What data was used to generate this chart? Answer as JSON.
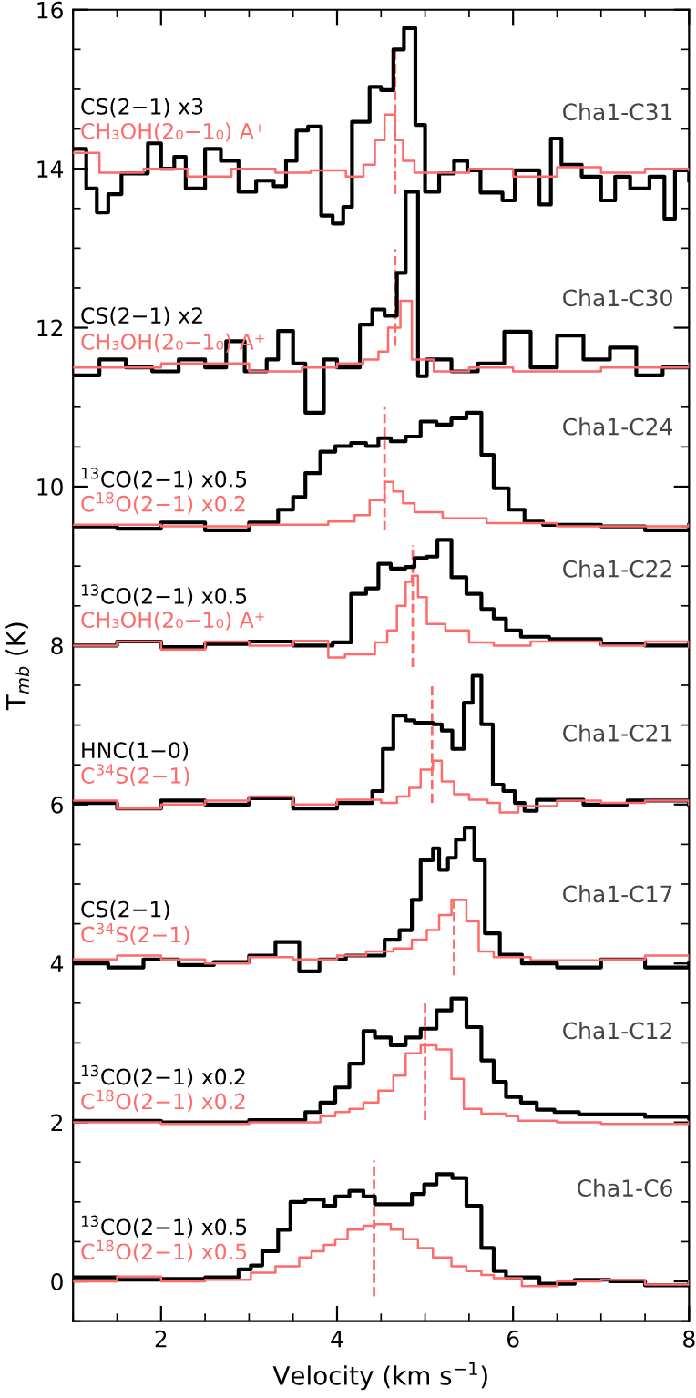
{
  "chart_data": {
    "type": "step",
    "xlabel": "Velocity (km s$^{−1}$)",
    "ylabel": "T$_{mb}$ (K)",
    "xlim": [
      1,
      8
    ],
    "ylim": [
      -0.5,
      16
    ],
    "xticks": [
      2,
      4,
      6,
      8
    ],
    "yticks": [
      0,
      2,
      4,
      6,
      8,
      10,
      12,
      14,
      16
    ],
    "grid": false,
    "legend": false,
    "series": [
      {
        "name": "CS(2−1) x3",
        "color": "#000000",
        "x": [
          1.0,
          1.15,
          1.27,
          1.4,
          1.55,
          1.85,
          2.0,
          2.15,
          2.28,
          2.5,
          2.68,
          2.88,
          3.08,
          3.28,
          3.42,
          3.54,
          3.67,
          3.82,
          3.95,
          4.07,
          4.17,
          4.37,
          4.5,
          4.64,
          4.76,
          4.89,
          5.0,
          5.16,
          5.33,
          5.48,
          5.63,
          5.88,
          6.02,
          6.3,
          6.43,
          6.55,
          6.78,
          7.0,
          7.16,
          7.33,
          7.55,
          7.72,
          7.84,
          8.0
        ],
        "values": [
          14.25,
          13.75,
          13.45,
          13.68,
          13.94,
          14.32,
          14.0,
          14.15,
          13.75,
          14.25,
          14.1,
          13.71,
          13.85,
          13.78,
          14.1,
          14.48,
          14.53,
          13.41,
          13.31,
          13.52,
          14.59,
          15.03,
          14.99,
          15.5,
          15.77,
          14.55,
          13.71,
          13.94,
          14.1,
          13.98,
          13.7,
          13.6,
          13.98,
          13.55,
          14.38,
          14.05,
          13.9,
          13.6,
          13.9,
          13.75,
          13.9,
          13.37,
          13.98,
          13.85
        ]
      },
      {
        "name": "CH₃OH(2₀−1₀) A⁺",
        "color": "#ff6b6b",
        "x": [
          1.0,
          1.3,
          1.8,
          2.3,
          2.8,
          3.3,
          3.7,
          4.1,
          4.3,
          4.43,
          4.54,
          4.66,
          4.75,
          4.88,
          5.0,
          5.5,
          6.0,
          6.5,
          7.0,
          7.5,
          8.0
        ],
        "values": [
          14.2,
          13.95,
          14.0,
          13.9,
          14.0,
          13.95,
          13.98,
          13.9,
          14.05,
          14.36,
          14.68,
          14.36,
          14.1,
          13.95,
          13.95,
          14.0,
          13.9,
          14.02,
          13.95,
          14.0,
          13.98
        ]
      },
      {
        "type": "line",
        "line_style": "dashed",
        "color": "#ff6b6b",
        "x": [
          4.66,
          4.66
        ],
        "values": [
          13.68,
          15.5
        ]
      },
      {
        "name": "CS(2−1) x2",
        "color": "#000000",
        "x": [
          1.0,
          1.3,
          1.6,
          1.9,
          2.2,
          2.5,
          2.74,
          2.95,
          3.2,
          3.33,
          3.5,
          3.64,
          3.85,
          4.0,
          4.26,
          4.4,
          4.54,
          4.68,
          4.78,
          4.92,
          5.02,
          5.3,
          5.6,
          5.9,
          6.2,
          6.5,
          6.8,
          7.1,
          7.4,
          7.7,
          8.0
        ],
        "values": [
          11.4,
          11.6,
          11.5,
          11.45,
          11.6,
          11.5,
          11.83,
          11.45,
          11.6,
          11.96,
          11.55,
          10.93,
          11.6,
          11.5,
          12.04,
          12.23,
          12.15,
          12.69,
          13.71,
          11.39,
          11.6,
          11.45,
          11.55,
          11.95,
          11.5,
          11.9,
          11.6,
          11.75,
          11.4,
          11.5,
          11.5
        ]
      },
      {
        "name": "CH₃OH(2₀−1₀) A⁺",
        "color": "#ff6b6b",
        "x": [
          1.0,
          2.0,
          3.0,
          3.6,
          4.0,
          4.3,
          4.47,
          4.58,
          4.72,
          4.85,
          5.1,
          5.5,
          6.0,
          7.0,
          8.0
        ],
        "values": [
          11.5,
          11.55,
          11.45,
          11.5,
          11.55,
          11.6,
          11.7,
          12.0,
          12.34,
          11.6,
          11.45,
          11.5,
          11.45,
          11.5,
          11.55
        ]
      },
      {
        "type": "line",
        "line_style": "dashed",
        "color": "#ff6b6b",
        "x": [
          4.66,
          4.66
        ],
        "values": [
          11.77,
          12.99
        ]
      },
      {
        "name": "$^{13}$CO(2−1) x0.5",
        "color": "#000000",
        "x": [
          1.0,
          1.5,
          2.0,
          2.5,
          3.0,
          3.33,
          3.5,
          3.64,
          3.81,
          3.98,
          4.16,
          4.33,
          4.47,
          4.61,
          4.78,
          4.95,
          5.13,
          5.3,
          5.47,
          5.64,
          5.78,
          5.95,
          6.13,
          6.34,
          7.0,
          7.5,
          8.0
        ],
        "values": [
          9.5,
          9.47,
          9.55,
          9.45,
          9.55,
          9.71,
          9.87,
          10.17,
          10.44,
          10.51,
          10.55,
          10.51,
          10.61,
          10.57,
          10.63,
          10.82,
          10.78,
          10.86,
          10.93,
          10.4,
          9.98,
          9.71,
          9.56,
          9.52,
          9.5,
          9.45,
          9.52
        ]
      },
      {
        "name": "C$^{18}$O(2−1) x0.2",
        "color": "#ff6b6b",
        "x": [
          1.0,
          2.0,
          3.0,
          3.9,
          4.2,
          4.37,
          4.54,
          4.64,
          4.75,
          4.88,
          5.2,
          5.7,
          6.5,
          8.0
        ],
        "values": [
          9.52,
          9.5,
          9.52,
          9.56,
          9.64,
          9.83,
          10.06,
          9.94,
          9.79,
          9.68,
          9.6,
          9.54,
          9.5,
          9.52
        ]
      },
      {
        "type": "line",
        "line_style": "dashed",
        "color": "#ff6b6b",
        "x": [
          4.54,
          4.54
        ],
        "values": [
          9.45,
          11.0
        ]
      },
      {
        "name": "$^{13}$CO(2−1) x0.5",
        "color": "#000000",
        "x": [
          1.0,
          1.5,
          2.0,
          2.5,
          3.0,
          3.5,
          3.95,
          4.16,
          4.33,
          4.47,
          4.61,
          4.78,
          4.88,
          5.02,
          5.14,
          5.3,
          5.47,
          5.64,
          5.78,
          5.92,
          6.09,
          6.41,
          7.0,
          7.5,
          8.0
        ],
        "values": [
          8.0,
          8.05,
          7.98,
          8.02,
          8.05,
          8.0,
          8.04,
          8.65,
          8.72,
          9.03,
          8.97,
          8.99,
          9.1,
          9.12,
          9.33,
          8.86,
          8.65,
          8.46,
          8.34,
          8.19,
          8.11,
          8.08,
          8.02,
          8.0,
          8.03
        ]
      },
      {
        "name": "CH₃OH(2₀−1₀) A⁺",
        "color": "#ff6b6b",
        "x": [
          1.0,
          1.5,
          2.0,
          2.5,
          3.0,
          3.5,
          3.9,
          4.09,
          4.43,
          4.57,
          4.68,
          4.78,
          4.85,
          4.92,
          5.02,
          5.23,
          5.5,
          5.78,
          6.2,
          7.0,
          7.5,
          8.0
        ],
        "values": [
          8.0,
          8.05,
          7.95,
          8.05,
          8.0,
          8.06,
          7.85,
          7.89,
          8.04,
          8.19,
          8.5,
          8.8,
          8.88,
          8.61,
          8.27,
          8.19,
          8.04,
          8.0,
          8.05,
          8.0,
          8.05,
          7.98
        ]
      },
      {
        "type": "line",
        "line_style": "dashed",
        "color": "#ff6b6b",
        "x": [
          4.86,
          4.86
        ],
        "values": [
          7.73,
          9.26
        ]
      },
      {
        "name": "HNC(1−0)",
        "color": "#000000",
        "x": [
          1.0,
          1.5,
          2.0,
          2.5,
          3.0,
          3.5,
          4.0,
          4.4,
          4.52,
          4.64,
          4.78,
          4.88,
          5.09,
          5.19,
          5.31,
          5.44,
          5.54,
          5.64,
          5.77,
          5.89,
          6.02,
          6.13,
          6.27,
          6.8,
          7.3,
          8.0
        ],
        "values": [
          6.02,
          5.95,
          6.05,
          6.0,
          6.08,
          5.95,
          6.02,
          6.17,
          6.7,
          7.12,
          7.06,
          7.03,
          7.01,
          6.93,
          6.7,
          7.28,
          7.62,
          7.01,
          6.25,
          6.17,
          6.02,
          5.92,
          6.06,
          6.0,
          6.05,
          6.0
        ]
      },
      {
        "name": "C$^{34}$S(2−1)",
        "color": "#ff6b6b",
        "x": [
          1.0,
          1.5,
          2.0,
          2.5,
          3.0,
          3.5,
          4.0,
          4.5,
          4.68,
          4.82,
          4.95,
          5.09,
          5.19,
          5.33,
          5.5,
          5.71,
          5.85,
          6.06,
          6.5,
          7.0,
          7.5,
          8.0
        ],
        "values": [
          6.05,
          5.95,
          6.0,
          6.05,
          6.1,
          6.0,
          6.06,
          6.02,
          6.1,
          6.21,
          6.44,
          6.55,
          6.29,
          6.13,
          6.06,
          6.02,
          5.9,
          5.98,
          6.05,
          6.02,
          6.05,
          6.0
        ]
      },
      {
        "type": "line",
        "line_style": "dashed",
        "color": "#ff6b6b",
        "x": [
          5.08,
          5.08
        ],
        "values": [
          6.02,
          7.5
        ]
      },
      {
        "name": "CS(2−1)",
        "color": "#000000",
        "x": [
          1.0,
          1.4,
          1.8,
          2.2,
          2.6,
          3.0,
          3.3,
          3.57,
          3.8,
          4.1,
          4.54,
          4.71,
          4.85,
          4.95,
          5.09,
          5.16,
          5.26,
          5.35,
          5.45,
          5.56,
          5.68,
          5.85,
          6.1,
          6.5,
          7.0,
          7.5,
          8.0
        ],
        "values": [
          4.0,
          3.95,
          4.05,
          3.98,
          4.02,
          4.1,
          4.27,
          3.9,
          4.05,
          4.1,
          4.3,
          4.42,
          4.8,
          5.3,
          5.45,
          5.18,
          5.33,
          5.56,
          5.71,
          5.3,
          4.38,
          4.11,
          4.0,
          3.95,
          4.05,
          3.95,
          4.0
        ]
      },
      {
        "name": "C$^{34}$S(2−1)",
        "color": "#ff6b6b",
        "x": [
          1.0,
          1.5,
          2.0,
          2.5,
          3.0,
          3.5,
          4.0,
          4.33,
          4.64,
          4.85,
          5.02,
          5.16,
          5.3,
          5.47,
          5.61,
          5.78,
          6.2,
          7.0,
          7.5,
          8.0
        ],
        "values": [
          4.05,
          4.1,
          4.05,
          4.0,
          4.08,
          4.05,
          4.1,
          4.15,
          4.19,
          4.3,
          4.42,
          4.61,
          4.8,
          4.53,
          4.15,
          4.08,
          4.04,
          4.05,
          4.1,
          4.05
        ]
      },
      {
        "type": "line",
        "line_style": "dashed",
        "color": "#ff6b6b",
        "x": [
          5.33,
          5.33
        ],
        "values": [
          3.85,
          4.84
        ]
      },
      {
        "name": "$^{13}$CO(2−1) x0.2",
        "color": "#000000",
        "x": [
          1.0,
          2.0,
          3.0,
          3.64,
          3.81,
          3.98,
          4.14,
          4.3,
          4.43,
          4.61,
          4.78,
          4.95,
          5.13,
          5.3,
          5.47,
          5.64,
          5.78,
          5.92,
          6.09,
          6.27,
          6.47,
          6.75,
          7.5,
          8.0
        ],
        "values": [
          2.02,
          2.0,
          2.03,
          2.13,
          2.25,
          2.44,
          2.74,
          3.15,
          3.07,
          2.97,
          3.07,
          3.18,
          3.41,
          3.56,
          3.2,
          2.78,
          2.51,
          2.32,
          2.25,
          2.16,
          2.13,
          2.1,
          2.07,
          2.05
        ]
      },
      {
        "name": "C$^{18}$O(2−1) x0.2",
        "color": "#ff6b6b",
        "x": [
          1.0,
          2.0,
          3.0,
          3.81,
          3.98,
          4.14,
          4.3,
          4.47,
          4.64,
          4.78,
          4.95,
          5.13,
          5.3,
          5.44,
          5.64,
          5.92,
          6.06,
          6.5,
          7.0,
          8.0
        ],
        "values": [
          2.0,
          1.98,
          2.0,
          2.08,
          2.13,
          2.17,
          2.25,
          2.4,
          2.59,
          2.87,
          2.97,
          2.92,
          2.55,
          2.17,
          2.11,
          2.08,
          2.02,
          2.0,
          1.98,
          2.0
        ]
      },
      {
        "type": "line",
        "line_style": "dashed",
        "color": "#ff6b6b",
        "x": [
          5.0,
          5.0
        ],
        "values": [
          2.03,
          3.54
        ]
      },
      {
        "name": "$^{13}$CO(2−1) x0.5",
        "color": "#000000",
        "x": [
          1.0,
          1.5,
          2.0,
          2.5,
          2.88,
          3.02,
          3.15,
          3.33,
          3.47,
          3.64,
          3.85,
          3.98,
          4.14,
          4.3,
          4.43,
          4.85,
          4.99,
          5.13,
          5.31,
          5.47,
          5.64,
          5.78,
          5.92,
          6.3,
          6.7,
          7.1,
          7.5,
          8.0
        ],
        "values": [
          0.05,
          0.02,
          0.03,
          0.05,
          0.15,
          0.2,
          0.38,
          0.65,
          1.0,
          1.03,
          0.95,
          1.07,
          1.14,
          1.07,
          0.97,
          1.1,
          1.22,
          1.35,
          1.3,
          0.95,
          0.42,
          0.13,
          0.05,
          -0.03,
          0.02,
          0.0,
          -0.05,
          0.0
        ]
      },
      {
        "name": "C$^{18}$O(2−1) x0.5",
        "color": "#ff6b6b",
        "x": [
          1.0,
          1.5,
          2.0,
          2.5,
          3.02,
          3.3,
          3.57,
          3.71,
          3.85,
          3.98,
          4.12,
          4.3,
          4.43,
          4.61,
          4.75,
          4.92,
          5.09,
          5.3,
          5.47,
          5.64,
          5.78,
          6.1,
          6.5,
          7.0,
          7.5,
          8.0
        ],
        "values": [
          0.0,
          0.06,
          0.0,
          0.02,
          0.11,
          0.19,
          0.3,
          0.38,
          0.46,
          0.53,
          0.65,
          0.7,
          0.72,
          0.65,
          0.53,
          0.42,
          0.3,
          0.19,
          0.13,
          0.08,
          0.04,
          -0.06,
          0.0,
          0.02,
          -0.04,
          0.0
        ]
      },
      {
        "type": "line",
        "line_style": "dashed",
        "color": "#ff6b6b",
        "x": [
          4.42,
          4.42
        ],
        "values": [
          -0.19,
          1.52
        ]
      }
    ],
    "annotations": [
      "Cha1-C31",
      "Cha1-C30",
      "Cha1-C24",
      "Cha1-C22",
      "Cha1-C21",
      "Cha1-C17",
      "Cha1-C12",
      "Cha1-C6"
    ]
  }
}
